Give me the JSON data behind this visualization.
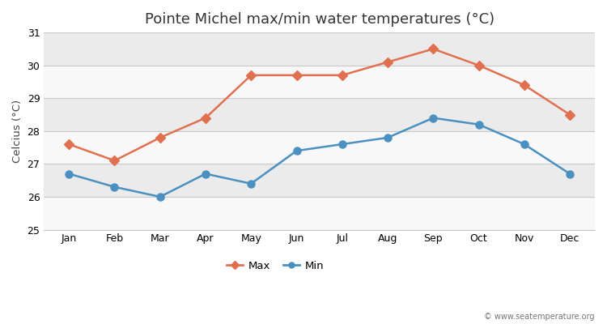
{
  "title": "Pointe Michel max/min water temperatures (°C)",
  "ylabel": "Celcius (°C)",
  "months": [
    "Jan",
    "Feb",
    "Mar",
    "Apr",
    "May",
    "Jun",
    "Jul",
    "Aug",
    "Sep",
    "Oct",
    "Nov",
    "Dec"
  ],
  "max_values": [
    27.6,
    27.1,
    27.8,
    28.4,
    29.7,
    29.7,
    29.7,
    30.1,
    30.5,
    30.0,
    29.4,
    28.5
  ],
  "min_values": [
    26.7,
    26.3,
    26.0,
    26.7,
    26.4,
    27.4,
    27.6,
    27.8,
    28.4,
    28.2,
    27.6,
    26.7
  ],
  "max_color": "#E07050",
  "min_color": "#4A90C0",
  "ylim": [
    25,
    31
  ],
  "yticks": [
    25,
    26,
    27,
    28,
    29,
    30,
    31
  ],
  "fig_bg_color": "#FFFFFF",
  "plot_bg_color": "#F2F2F2",
  "band_color_light": "#F8F8F8",
  "band_color_dark": "#EBEBEB",
  "grid_color": "#C8C8C8",
  "watermark": "© www.seatemperature.org",
  "legend_max": "Max",
  "legend_min": "Min",
  "title_fontsize": 13,
  "label_fontsize": 9.5,
  "tick_fontsize": 9
}
